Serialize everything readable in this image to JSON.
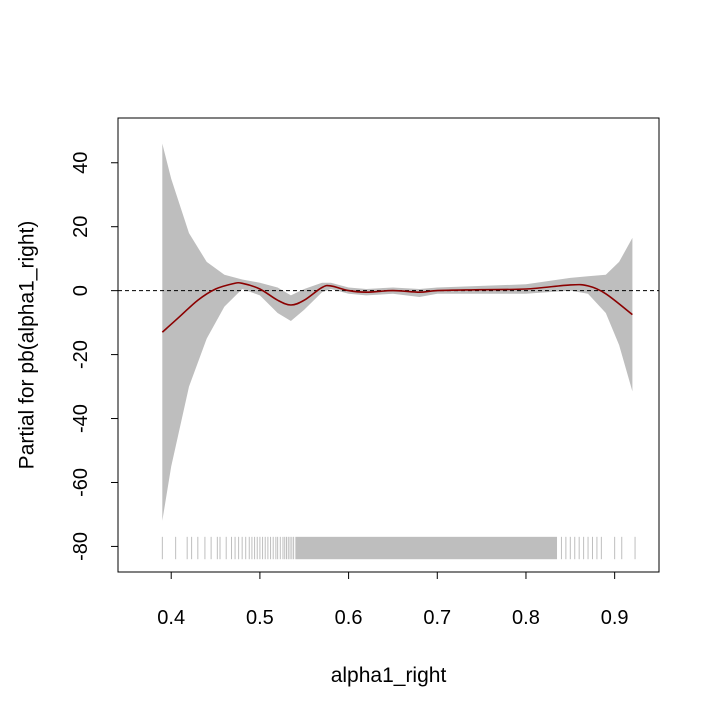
{
  "chart_data": {
    "type": "line",
    "title": "",
    "xlabel": "alpha1_right",
    "ylabel": "Partial for pb(alpha1_right)",
    "xlim": [
      0.34,
      0.95
    ],
    "ylim": [
      -88,
      54
    ],
    "x_ticks": [
      0.4,
      0.5,
      0.6,
      0.7,
      0.8,
      0.9
    ],
    "x_tick_labels": [
      "0.4",
      "0.5",
      "0.6",
      "0.7",
      "0.8",
      "0.9"
    ],
    "y_ticks": [
      40,
      20,
      0,
      -20,
      -40,
      -60,
      -80
    ],
    "y_tick_labels": [
      "40",
      "20",
      "0",
      "-20",
      "-40",
      "-60",
      "-80"
    ],
    "reference_line": 0,
    "grid": false,
    "colors": {
      "fit": "#8b0000",
      "band": "#bebebe",
      "rug": "#bebebe",
      "axis": "#000000"
    },
    "fit": {
      "x": [
        0.39,
        0.41,
        0.43,
        0.45,
        0.47,
        0.48,
        0.5,
        0.52,
        0.535,
        0.55,
        0.57,
        0.58,
        0.6,
        0.62,
        0.65,
        0.68,
        0.7,
        0.75,
        0.8,
        0.85,
        0.87,
        0.89,
        0.92
      ],
      "y": [
        -13,
        -8,
        -3,
        0.5,
        2.2,
        2.3,
        0.5,
        -3,
        -4.5,
        -3,
        1,
        1.5,
        0,
        -0.5,
        0,
        -0.5,
        0,
        0.3,
        0.5,
        1.8,
        1.5,
        -1,
        -7.5
      ]
    },
    "band": {
      "x": [
        0.39,
        0.4,
        0.42,
        0.44,
        0.46,
        0.48,
        0.5,
        0.52,
        0.535,
        0.55,
        0.57,
        0.58,
        0.6,
        0.62,
        0.65,
        0.68,
        0.7,
        0.75,
        0.8,
        0.85,
        0.87,
        0.89,
        0.905,
        0.92
      ],
      "upper": [
        46,
        35,
        18,
        9,
        5,
        3.5,
        2.5,
        1.0,
        -1.5,
        0.5,
        2.5,
        2.5,
        1.0,
        0.5,
        1.0,
        0.5,
        1.0,
        1.5,
        2.0,
        4.0,
        4.5,
        5.0,
        9.0,
        16.5
      ],
      "lower": [
        -72,
        -55,
        -30,
        -15,
        -5,
        0.5,
        -1.5,
        -7,
        -9.5,
        -6,
        -0.5,
        0.5,
        -1.0,
        -1.5,
        -1.0,
        -2.0,
        -1.0,
        -1.0,
        -1.0,
        0.0,
        -1.0,
        -7.0,
        -17.0,
        -31.5
      ]
    },
    "rug": {
      "y_range": [
        -84,
        -77
      ],
      "sparse_x": [
        0.39,
        0.405,
        0.418,
        0.423,
        0.43,
        0.438,
        0.445,
        0.452,
        0.455,
        0.462,
        0.468,
        0.472,
        0.476,
        0.48,
        0.484,
        0.488,
        0.491,
        0.494,
        0.497,
        0.5,
        0.503,
        0.506,
        0.509,
        0.512,
        0.515,
        0.518,
        0.52,
        0.523,
        0.526,
        0.528,
        0.53,
        0.532,
        0.534,
        0.536,
        0.538,
        0.84,
        0.845,
        0.85,
        0.855,
        0.86,
        0.865,
        0.87,
        0.875,
        0.88,
        0.885,
        0.9,
        0.908,
        0.923
      ],
      "dense_range": [
        0.54,
        0.835
      ]
    }
  }
}
